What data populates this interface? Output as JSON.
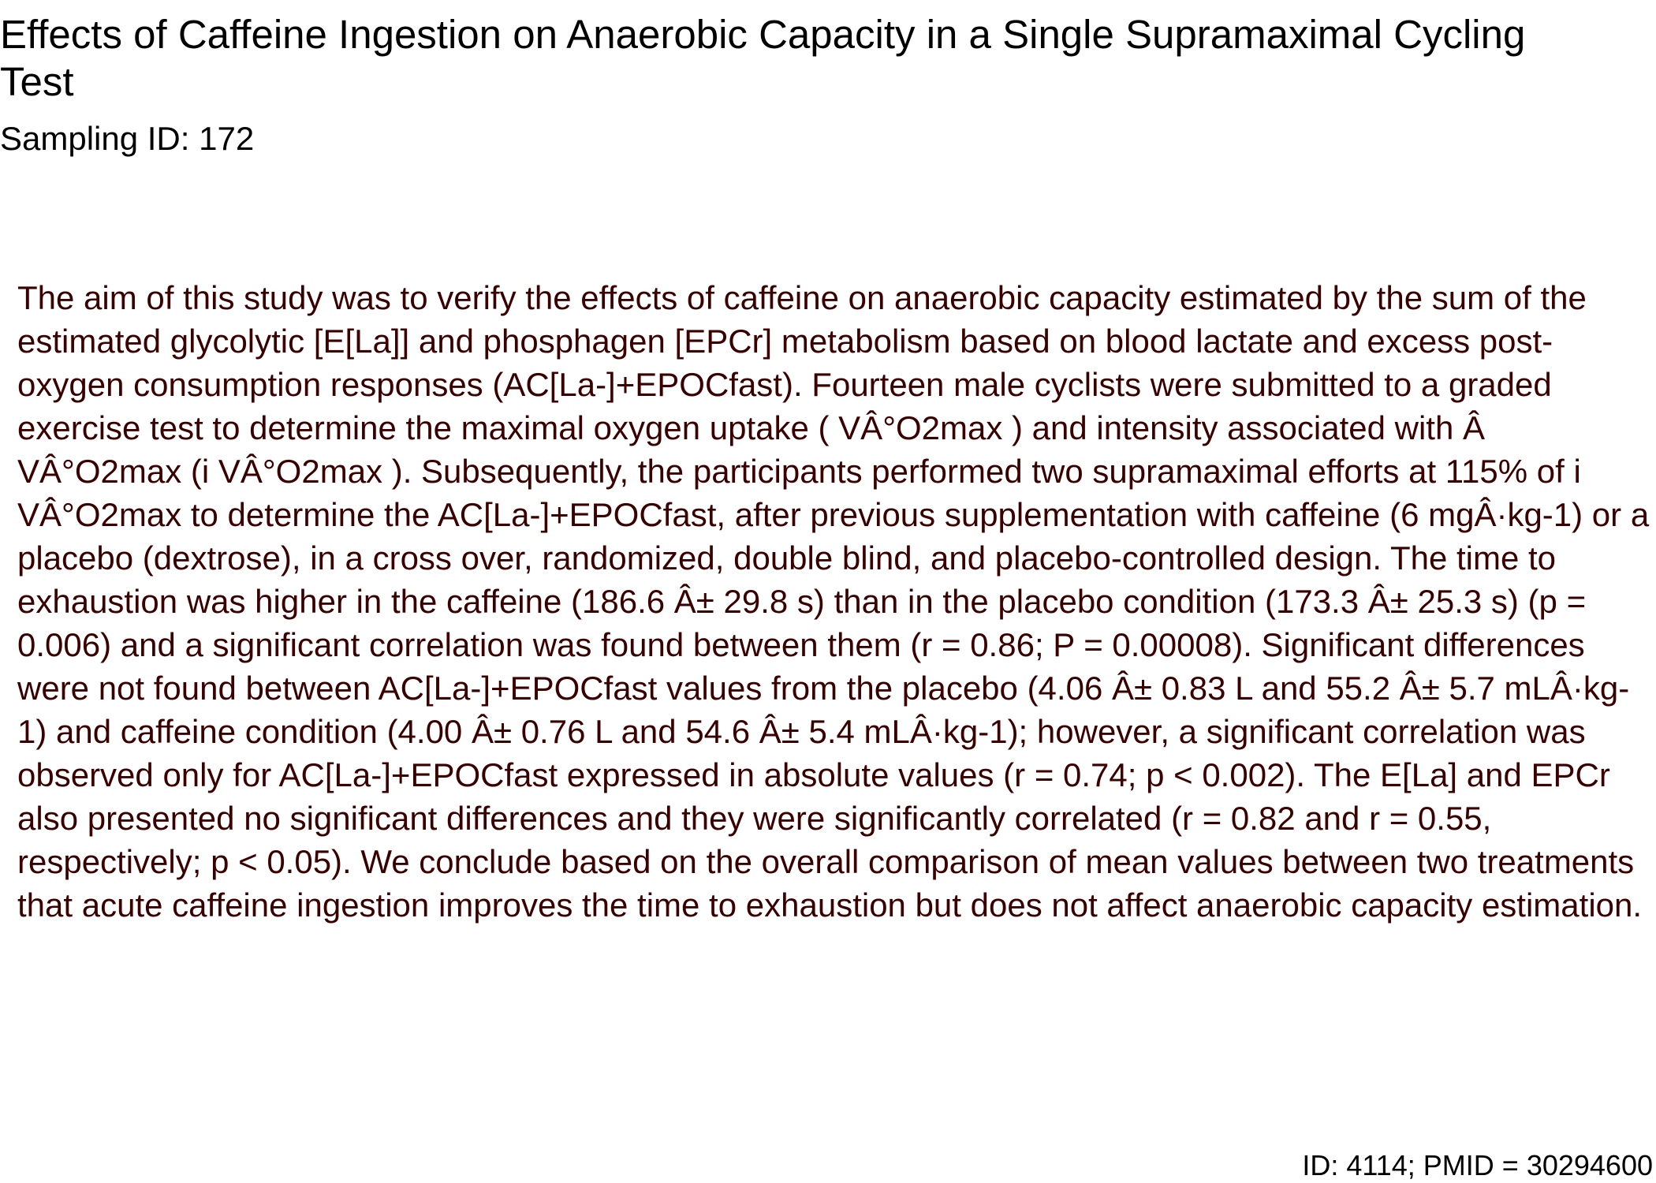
{
  "document": {
    "title": "Effects of Caffeine Ingestion on Anaerobic Capacity in a Single Supramaximal Cycling Test",
    "sampling_id": "Sampling ID: 172",
    "abstract": "The aim of this study was to verify the effects of caffeine on anaerobic capacity estimated by the sum of the estimated glycolytic [E[La]] and phosphagen [EPCr] metabolism based on blood lactate and excess post-oxygen consumption responses (AC[La-]+EPOCfast). Fourteen male cyclists were submitted to a graded exercise test to determine the maximal oxygen uptake ( VÂ°O2max ) and intensity associated with Â VÂ°O2max (i VÂ°O2max ). Subsequently, the participants performed two supramaximal efforts at 115% of i VÂ°O2max to determine the AC[La-]+EPOCfast, after previous supplementation with caffeine (6 mgÂ·kg-1) or a placebo (dextrose), in a cross over, randomized, double blind, and placebo-controlled design. The time to exhaustion was higher in the caffeine (186.6 Â± 29.8 s) than in the placebo condition (173.3 Â± 25.3 s) (p = 0.006) and a significant correlation was found between them (r = 0.86; P = 0.00008). Significant differences were not found between AC[La-]+EPOCfast values from the placebo (4.06 Â± 0.83 L and 55.2 Â± 5.7 mLÂ·kg-1) and caffeine condition (4.00 Â± 0.76 L and 54.6 Â± 5.4 mLÂ·kg-1); however, a significant correlation was observed only for AC[La-]+EPOCfast expressed in absolute values (r = 0.74; p < 0.002). The E[La] and EPCr also presented no significant differences and they were significantly correlated (r = 0.82 and r = 0.55, respectively; p < 0.05). We conclude based on the overall comparison of mean values between two treatments that acute caffeine ingestion improves the time to exhaustion but does not affect anaerobic capacity estimation.",
    "footer": "ID: 4114; PMID = 30294600"
  },
  "colors": {
    "title_text": "#000000",
    "abstract_text": "#3a0000",
    "background": "#ffffff"
  }
}
